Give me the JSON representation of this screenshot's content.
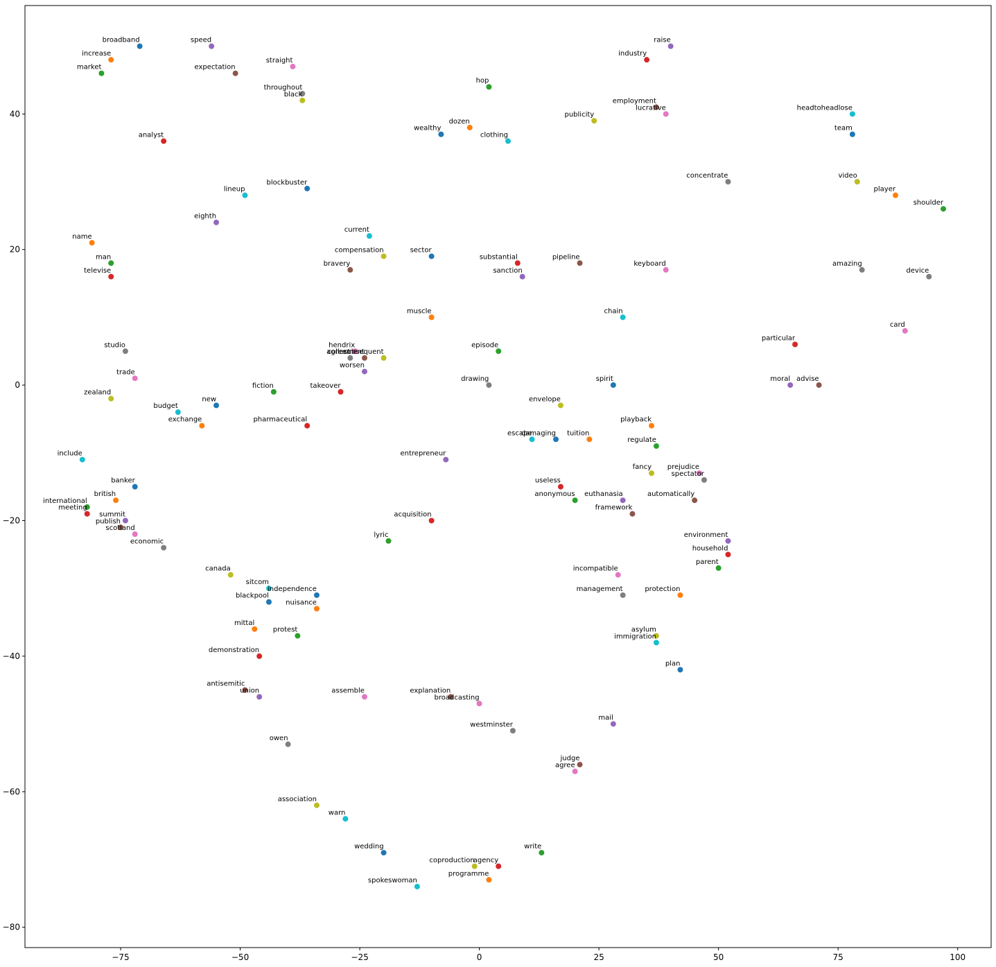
{
  "chart_data": {
    "type": "scatter",
    "title": "",
    "xlabel": "",
    "ylabel": "",
    "xlim": [
      -95,
      107
    ],
    "ylim": [
      -83,
      56
    ],
    "grid": false,
    "legend": "none",
    "xticks": [
      -75,
      -50,
      -25,
      0,
      25,
      50,
      75,
      100
    ],
    "yticks": [
      40,
      20,
      0,
      -20,
      -40,
      -60,
      -80
    ],
    "xtick_labels": [
      "−75",
      "−50",
      "−25",
      "0",
      "25",
      "50",
      "75",
      "100"
    ],
    "ytick_labels": [
      "40",
      "20",
      "0",
      "−20",
      "−40",
      "−60",
      "−80"
    ],
    "colors": [
      "#1f77b4",
      "#ff7f0e",
      "#2ca02c",
      "#d62728",
      "#9467bd",
      "#8c564b",
      "#e377c2",
      "#7f7f7f",
      "#bcbd22",
      "#17becf"
    ],
    "points": [
      {
        "label": "broadband",
        "x": -71,
        "y": 50
      },
      {
        "label": "increase",
        "x": -77,
        "y": 48
      },
      {
        "label": "market",
        "x": -79,
        "y": 46
      },
      {
        "label": "analyst",
        "x": -66,
        "y": 36
      },
      {
        "label": "speed",
        "x": -56,
        "y": 50
      },
      {
        "label": "expectation",
        "x": -51,
        "y": 46
      },
      {
        "label": "straight",
        "x": -39,
        "y": 47
      },
      {
        "label": "throughout",
        "x": -37,
        "y": 43
      },
      {
        "label": "black",
        "x": -37,
        "y": 42
      },
      {
        "label": "lineup",
        "x": -49,
        "y": 28
      },
      {
        "label": "blockbuster",
        "x": -36,
        "y": 29
      },
      {
        "label": "name",
        "x": -81,
        "y": 21
      },
      {
        "label": "man",
        "x": -77,
        "y": 18
      },
      {
        "label": "televise",
        "x": -77,
        "y": 16
      },
      {
        "label": "eighth",
        "x": -55,
        "y": 24
      },
      {
        "label": "bravery",
        "x": -27,
        "y": 17
      },
      {
        "label": "trade",
        "x": -72,
        "y": 1
      },
      {
        "label": "studio",
        "x": -74,
        "y": 5
      },
      {
        "label": "zealand",
        "x": -77,
        "y": -2
      },
      {
        "label": "budget",
        "x": -63,
        "y": -4
      },
      {
        "label": "new",
        "x": -55,
        "y": -3
      },
      {
        "label": "exchange",
        "x": -58,
        "y": -6
      },
      {
        "label": "fiction",
        "x": -43,
        "y": -1
      },
      {
        "label": "takeover",
        "x": -29,
        "y": -1
      },
      {
        "label": "worsen",
        "x": -24,
        "y": 2
      },
      {
        "label": "agreement",
        "x": -24,
        "y": 4
      },
      {
        "label": "hendrix",
        "x": -26,
        "y": 5
      },
      {
        "label": "collect",
        "x": -27,
        "y": 4
      },
      {
        "label": "subsequent",
        "x": -20,
        "y": 4
      },
      {
        "label": "include",
        "x": -83,
        "y": -11
      },
      {
        "label": "banker",
        "x": -72,
        "y": -15
      },
      {
        "label": "british",
        "x": -76,
        "y": -17
      },
      {
        "label": "international",
        "x": -82,
        "y": -18
      },
      {
        "label": "meeting",
        "x": -82,
        "y": -19
      },
      {
        "label": "summit",
        "x": -74,
        "y": -20
      },
      {
        "label": "publish",
        "x": -75,
        "y": -21
      },
      {
        "label": "scotland",
        "x": -72,
        "y": -22
      },
      {
        "label": "economic",
        "x": -66,
        "y": -24
      },
      {
        "label": "canada",
        "x": -52,
        "y": -28
      },
      {
        "label": "sitcom",
        "x": -44,
        "y": -30
      },
      {
        "label": "blackpool",
        "x": -44,
        "y": -32
      },
      {
        "label": "mittal",
        "x": -47,
        "y": -36
      },
      {
        "label": "protest",
        "x": -38,
        "y": -37
      },
      {
        "label": "demonstration",
        "x": -46,
        "y": -40
      },
      {
        "label": "union",
        "x": -46,
        "y": -46
      },
      {
        "label": "antisemitic",
        "x": -49,
        "y": -45
      },
      {
        "label": "assemble",
        "x": -24,
        "y": -46
      },
      {
        "label": "owen",
        "x": -40,
        "y": -53
      },
      {
        "label": "association",
        "x": -34,
        "y": -62
      },
      {
        "label": "warn",
        "x": -28,
        "y": -64
      },
      {
        "label": "independence",
        "x": -34,
        "y": -31
      },
      {
        "label": "nuisance",
        "x": -34,
        "y": -33
      },
      {
        "label": "lyric",
        "x": -19,
        "y": -23
      },
      {
        "label": "acquisition",
        "x": -10,
        "y": -20
      },
      {
        "label": "entrepreneur",
        "x": -7,
        "y": -11
      },
      {
        "label": "explanation",
        "x": -6,
        "y": -46
      },
      {
        "label": "broadcasting",
        "x": 0,
        "y": -47
      },
      {
        "label": "westminster",
        "x": 7,
        "y": -51
      },
      {
        "label": "coproduction",
        "x": -1,
        "y": -71
      },
      {
        "label": "spokeswoman",
        "x": -13,
        "y": -74
      },
      {
        "label": "wedding",
        "x": -20,
        "y": -69
      },
      {
        "label": "programme",
        "x": 2,
        "y": -73
      },
      {
        "label": "write",
        "x": 13,
        "y": -69
      },
      {
        "label": "agency",
        "x": 4,
        "y": -71
      },
      {
        "label": "mail",
        "x": 28,
        "y": -50
      },
      {
        "label": "judge",
        "x": 21,
        "y": -56
      },
      {
        "label": "agree",
        "x": 20,
        "y": -57
      },
      {
        "label": "drawing",
        "x": 2,
        "y": 0
      },
      {
        "label": "envelope",
        "x": 17,
        "y": -3
      },
      {
        "label": "escape",
        "x": 11,
        "y": -8
      },
      {
        "label": "damaging",
        "x": 16,
        "y": -8
      },
      {
        "label": "tuition",
        "x": 23,
        "y": -8
      },
      {
        "label": "anonymous",
        "x": 20,
        "y": -17
      },
      {
        "label": "useless",
        "x": 17,
        "y": -15
      },
      {
        "label": "euthanasia",
        "x": 30,
        "y": -17
      },
      {
        "label": "framework",
        "x": 32,
        "y": -19
      },
      {
        "label": "incompatible",
        "x": 29,
        "y": -28
      },
      {
        "label": "management",
        "x": 30,
        "y": -31
      },
      {
        "label": "asylum",
        "x": 37,
        "y": -37
      },
      {
        "label": "immigration",
        "x": 37,
        "y": -38
      },
      {
        "label": "plan",
        "x": 42,
        "y": -42
      },
      {
        "label": "protection",
        "x": 42,
        "y": -31
      },
      {
        "label": "parent",
        "x": 50,
        "y": -27
      },
      {
        "label": "household",
        "x": 52,
        "y": -25
      },
      {
        "label": "environment",
        "x": 52,
        "y": -23
      },
      {
        "label": "automatically",
        "x": 45,
        "y": -17
      },
      {
        "label": "prejudice",
        "x": 46,
        "y": -13
      },
      {
        "label": "spectator",
        "x": 47,
        "y": -14
      },
      {
        "label": "fancy",
        "x": 36,
        "y": -13
      },
      {
        "label": "chain",
        "x": 30,
        "y": 10
      },
      {
        "label": "spirit",
        "x": 28,
        "y": 0
      },
      {
        "label": "playback",
        "x": 36,
        "y": -6
      },
      {
        "label": "regulate",
        "x": 37,
        "y": -9
      },
      {
        "label": "particular",
        "x": 66,
        "y": 6
      },
      {
        "label": "moral",
        "x": 65,
        "y": 0
      },
      {
        "label": "advise",
        "x": 71,
        "y": 0
      },
      {
        "label": "card",
        "x": 89,
        "y": 8
      },
      {
        "label": "device",
        "x": 94,
        "y": 16
      },
      {
        "label": "video",
        "x": 79,
        "y": 30
      },
      {
        "label": "headtoheadlose",
        "x": 78,
        "y": 40
      },
      {
        "label": "team",
        "x": 78,
        "y": 37
      },
      {
        "label": "player",
        "x": 87,
        "y": 28
      },
      {
        "label": "shoulder",
        "x": 97,
        "y": 26
      },
      {
        "label": "industry",
        "x": 35,
        "y": 48
      },
      {
        "label": "raise",
        "x": 40,
        "y": 50
      },
      {
        "label": "employment",
        "x": 37,
        "y": 41
      },
      {
        "label": "lucrative",
        "x": 39,
        "y": 40
      },
      {
        "label": "concentrate",
        "x": 52,
        "y": 30
      },
      {
        "label": "publicity",
        "x": 24,
        "y": 39
      },
      {
        "label": "clothing",
        "x": 6,
        "y": 36
      },
      {
        "label": "wealthy",
        "x": -8,
        "y": 37
      },
      {
        "label": "dozen",
        "x": -2,
        "y": 38
      },
      {
        "label": "hop",
        "x": 2,
        "y": 44
      },
      {
        "label": "substantial",
        "x": 8,
        "y": 18
      },
      {
        "label": "sanction",
        "x": 9,
        "y": 16
      },
      {
        "label": "pipeline",
        "x": 21,
        "y": 18
      },
      {
        "label": "keyboard",
        "x": 39,
        "y": 17
      },
      {
        "label": "amazing",
        "x": 80,
        "y": 17
      },
      {
        "label": "compensation",
        "x": -20,
        "y": 19
      },
      {
        "label": "current",
        "x": -23,
        "y": 22
      },
      {
        "label": "sector",
        "x": -10,
        "y": 19
      },
      {
        "label": "muscle",
        "x": -10,
        "y": 10
      },
      {
        "label": "episode",
        "x": 4,
        "y": 5
      },
      {
        "label": "pharmaceutical",
        "x": -36,
        "y": -6
      }
    ]
  }
}
